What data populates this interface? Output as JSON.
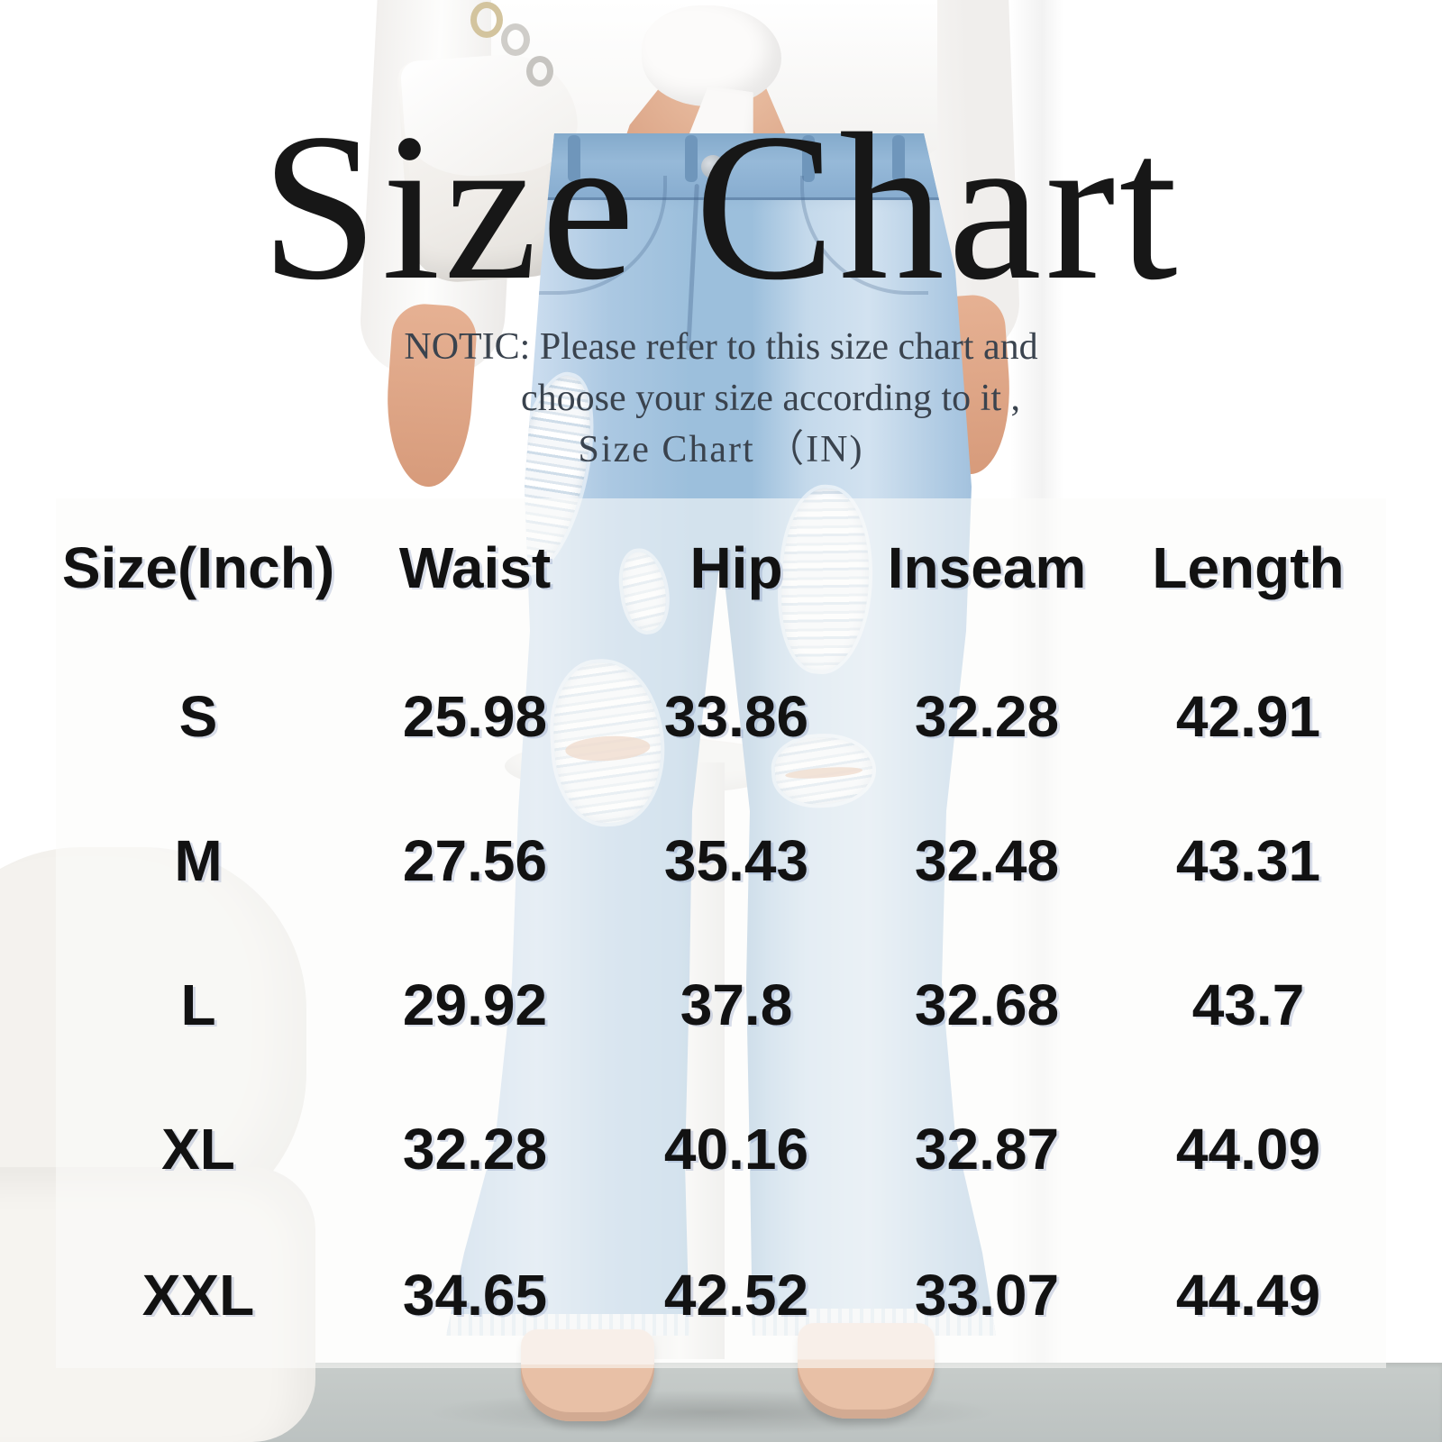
{
  "title": "Size Chart",
  "notice": {
    "line1": "NOTIC: Please refer to this size chart and",
    "line2": "choose your size according to it ,",
    "line3": "Size Chart （IN)"
  },
  "chart_data": {
    "type": "table",
    "title": "Size Chart",
    "unit_label": "IN",
    "columns": [
      "Size(Inch)",
      "Waist",
      "Hip",
      "Inseam",
      "Length"
    ],
    "rows": [
      [
        "S",
        "25.98",
        "33.86",
        "32.28",
        "42.91"
      ],
      [
        "M",
        "27.56",
        "35.43",
        "32.48",
        "43.31"
      ],
      [
        "L",
        "29.92",
        "37.8",
        "32.68",
        "43.7"
      ],
      [
        "XL",
        "32.28",
        "40.16",
        "32.87",
        "44.09"
      ],
      [
        "XXL",
        "34.65",
        "42.52",
        "33.07",
        "44.49"
      ]
    ]
  },
  "colors": {
    "title_text": "#171717",
    "table_text": "#121212",
    "notice_text": "#3a434e",
    "denim": "#a9c6e0",
    "overlay_white": "#fbfbfa",
    "floor_gray": "#c2c7c6"
  }
}
